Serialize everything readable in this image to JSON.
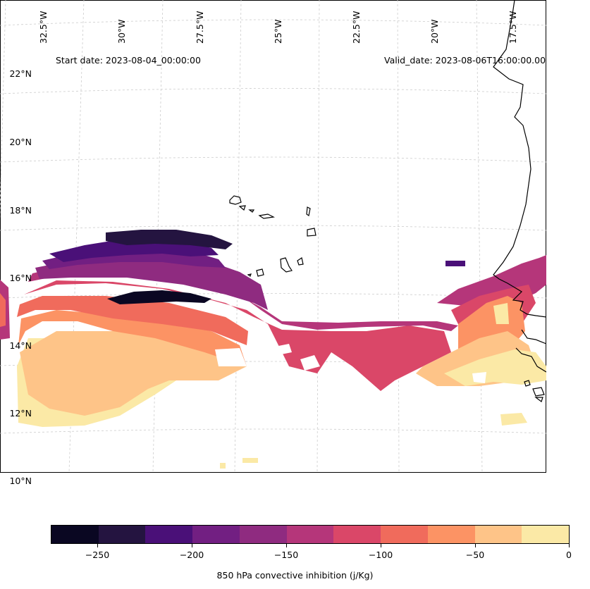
{
  "map": {
    "start_label": "Start date: 2023-08-04_00:00:00",
    "valid_label": "Valid_date: 2023-08-06T16:00:00.00",
    "lon_labels": [
      "32.5°W",
      "30°W",
      "27.5°W",
      "25°W",
      "22.5°W",
      "20°W",
      "17.5°W"
    ],
    "lat_labels": [
      "22°N",
      "20°N",
      "18°N",
      "16°N",
      "14°N",
      "12°N",
      "10°N"
    ],
    "colorbar": {
      "title": "850 hPa convective inhibition (j/Kg)",
      "ticks": [
        "−250",
        "−200",
        "−150",
        "−100",
        "−50",
        "0"
      ],
      "colors": [
        "#0a0722",
        "#241440",
        "#4a1078",
        "#721f82",
        "#8f2b80",
        "#b5367a",
        "#da4768",
        "#f06b5c",
        "#fc9364",
        "#fec488",
        "#fbe9a6"
      ]
    },
    "colors": {
      "gridline": "#cccccc",
      "coastline": "#000000"
    }
  }
}
